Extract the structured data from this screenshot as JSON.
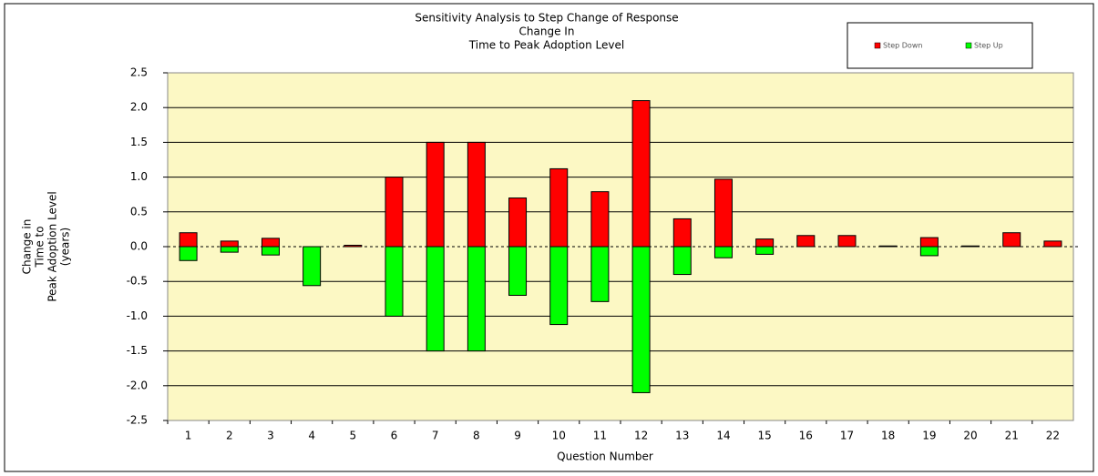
{
  "chart_data": {
    "type": "bar",
    "title": [
      "Sensitivity Analysis to Step Change of Response",
      "Change In",
      "Time to Peak Adoption Level"
    ],
    "x_label": "Question Number",
    "y_label": [
      "Change in",
      "Time to",
      "Peak Adoption Level",
      "(years)"
    ],
    "categories": [
      "1",
      "2",
      "3",
      "4",
      "5",
      "6",
      "7",
      "8",
      "9",
      "10",
      "11",
      "12",
      "13",
      "14",
      "15",
      "16",
      "17",
      "18",
      "19",
      "20",
      "21",
      "22"
    ],
    "series": [
      {
        "name": "Step Down",
        "color": "#ff0000",
        "values": [
          0.2,
          0.08,
          0.12,
          0,
          0.02,
          1.0,
          1.5,
          1.5,
          0.7,
          1.12,
          0.79,
          2.1,
          0.4,
          0.97,
          0.11,
          0.16,
          0.16,
          0.01,
          0.13,
          0.01,
          0.2,
          0.08
        ]
      },
      {
        "name": "Step Up",
        "color": "#00ff00",
        "values": [
          -0.2,
          -0.08,
          -0.12,
          -0.56,
          0,
          -1.0,
          -1.5,
          -1.5,
          -0.7,
          -1.12,
          -0.79,
          -2.1,
          -0.4,
          -0.16,
          -0.11,
          0,
          0,
          0,
          -0.13,
          0,
          0,
          0
        ]
      }
    ],
    "ylim": [
      -2.5,
      2.5
    ],
    "yticks": [
      2.5,
      {
        "value": 2,
        "label": "2.0"
      },
      1.5,
      {
        "value": 1,
        "label": "1.0"
      },
      0.5,
      {
        "value": 0,
        "label": "0.0"
      },
      -0.5,
      {
        "value": -1,
        "label": "-1.0"
      },
      -1.5,
      {
        "value": -2,
        "label": "-2.0"
      },
      -2.5
    ],
    "grid": true,
    "legend": "top-right"
  }
}
